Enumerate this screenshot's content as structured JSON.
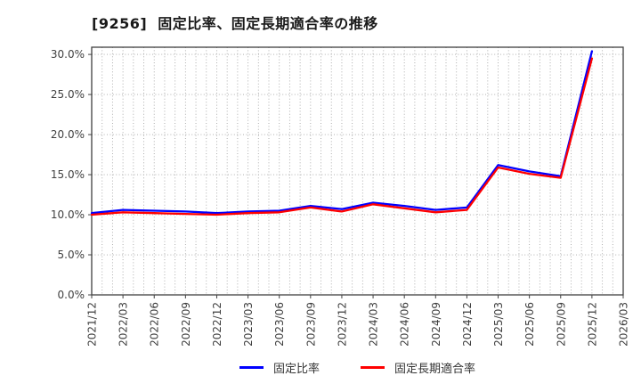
{
  "chart_data": {
    "type": "line",
    "title": "[9256]  固定比率、固定長期適合率の推移",
    "categories": [
      "2021/12",
      "2022/03",
      "2022/06",
      "2022/09",
      "2022/12",
      "2023/03",
      "2023/06",
      "2023/09",
      "2023/12",
      "2024/03",
      "2024/06",
      "2024/09",
      "2024/12",
      "2025/03",
      "2025/06",
      "2025/09",
      "2025/12",
      "2026/03"
    ],
    "series": [
      {
        "name": "固定比率",
        "color": "#0000ff",
        "values": [
          10.2,
          10.6,
          10.5,
          10.4,
          10.2,
          10.4,
          10.5,
          11.1,
          10.7,
          11.5,
          11.1,
          10.6,
          10.9,
          16.2,
          15.4,
          14.8,
          30.4,
          null
        ]
      },
      {
        "name": "固定長期適合率",
        "color": "#ff0000",
        "values": [
          10.0,
          10.3,
          10.2,
          10.1,
          10.0,
          10.2,
          10.3,
          10.9,
          10.4,
          11.3,
          10.8,
          10.3,
          10.6,
          15.9,
          15.1,
          14.6,
          29.5,
          null
        ]
      }
    ],
    "xlabel": "",
    "ylabel": "",
    "ylim": [
      0,
      30.9
    ],
    "yticks": [
      {
        "value": 0,
        "label": "0.0%"
      },
      {
        "value": 5,
        "label": "5.0%"
      },
      {
        "value": 10,
        "label": "10.0%"
      },
      {
        "value": 15,
        "label": "15.0%"
      },
      {
        "value": 20,
        "label": "20.0%"
      },
      {
        "value": 25,
        "label": "25.0%"
      },
      {
        "value": 30,
        "label": "30.0%"
      }
    ],
    "grid": true,
    "minor_x_per_label": 3,
    "legend_position": "bottom-center"
  },
  "colors": {
    "grid": "#a6a6a6",
    "border": "#404040",
    "tick_text": "#404040",
    "title_text": "#1a1a1a"
  }
}
